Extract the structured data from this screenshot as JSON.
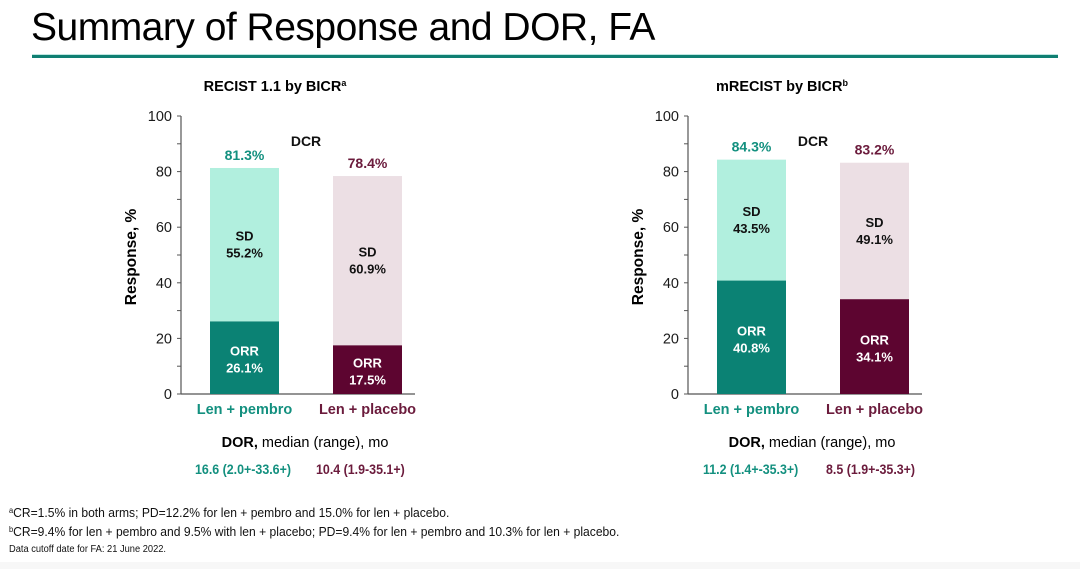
{
  "slide": {
    "title": "Summary of Response and DOR, FA",
    "accent_color": "#0f7f72"
  },
  "colors": {
    "pembro_dark": "#0b8274",
    "pembro_light": "#b1efde",
    "placebo_dark": "#5d0530",
    "placebo_light": "#ecdfe4",
    "pembro_text": "#13907f",
    "placebo_text": "#6b1b3c"
  },
  "chart_data": [
    {
      "type": "bar",
      "stacked": true,
      "title": "RECIST 1.1 by BICR",
      "title_superscript": "a",
      "ylabel": "Response, %",
      "xlabel": "",
      "ylim": [
        0,
        100
      ],
      "yticks": [
        0,
        20,
        40,
        60,
        80,
        100
      ],
      "grid": false,
      "categories": [
        "Len + pembro",
        "Len + placebo"
      ],
      "series": [
        {
          "name": "ORR",
          "values": [
            26.1,
            17.5
          ],
          "labels": [
            "26.1%",
            "17.5%"
          ]
        },
        {
          "name": "SD",
          "values": [
            55.2,
            60.9
          ],
          "labels": [
            "55.2%",
            "60.9%"
          ]
        }
      ],
      "totals": {
        "name": "DCR",
        "values": [
          81.3,
          78.4
        ],
        "labels": [
          "81.3%",
          "78.4%"
        ]
      },
      "annotation": "DCR",
      "dor": {
        "heading_bold": "DOR,",
        "heading_rest": " median (range), mo",
        "values": [
          "16.6 (2.0+-33.6+)",
          "10.4 (1.9-35.1+)"
        ]
      }
    },
    {
      "type": "bar",
      "stacked": true,
      "title": "mRECIST by BICR",
      "title_superscript": "b",
      "ylabel": "Response, %",
      "xlabel": "",
      "ylim": [
        0,
        100
      ],
      "yticks": [
        0,
        20,
        40,
        60,
        80,
        100
      ],
      "grid": false,
      "categories": [
        "Len + pembro",
        "Len + placebo"
      ],
      "series": [
        {
          "name": "ORR",
          "values": [
            40.8,
            34.1
          ],
          "labels": [
            "40.8%",
            "34.1%"
          ]
        },
        {
          "name": "SD",
          "values": [
            43.5,
            49.1
          ],
          "labels": [
            "43.5%",
            "49.1%"
          ]
        }
      ],
      "totals": {
        "name": "DCR",
        "values": [
          84.3,
          83.2
        ],
        "labels": [
          "84.3%",
          "83.2%"
        ]
      },
      "annotation": "DCR",
      "dor": {
        "heading_bold": "DOR,",
        "heading_rest": " median (range), mo",
        "values": [
          "11.2 (1.4+-35.3+)",
          "8.5 (1.9+-35.3+)"
        ]
      }
    }
  ],
  "footnotes": [
    {
      "marker": "a",
      "text": "CR=1.5% in both arms; PD=12.2% for len + pembro and 15.0% for len + placebo."
    },
    {
      "marker": "b",
      "text": "CR=9.4% for len + pembro and 9.5% with len + placebo; PD=9.4% for len + pembro and 10.3% for len + placebo."
    }
  ],
  "data_cutoff": "Data cutoff date for FA: 21 June 2022."
}
